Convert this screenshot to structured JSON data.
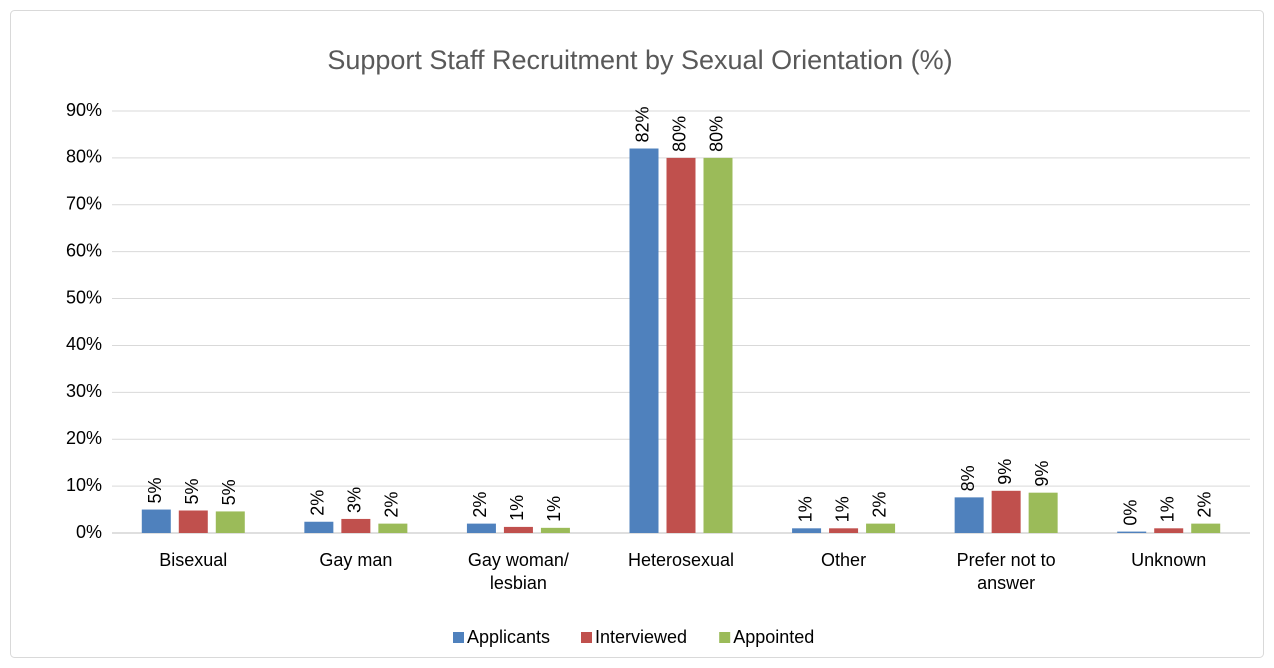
{
  "chart_data": {
    "type": "bar",
    "title": "Support Staff Recruitment by Sexual Orientation (%)",
    "categories": [
      "Bisexual",
      "Gay man",
      "Gay woman/ lesbian",
      "Heterosexual",
      "Other",
      "Prefer not to answer",
      "Unknown"
    ],
    "series": [
      {
        "name": "Applicants",
        "color": "#4f81bd",
        "values": [
          5,
          2.4,
          2,
          82,
          1,
          7.6,
          0.3
        ],
        "value_labels": [
          "5%",
          "2%",
          "2%",
          "82%",
          "1%",
          "8%",
          "0%"
        ]
      },
      {
        "name": "Interviewed",
        "color": "#c0504d",
        "values": [
          4.8,
          3,
          1.3,
          80,
          1,
          9,
          1
        ],
        "value_labels": [
          "5%",
          "3%",
          "1%",
          "80%",
          "1%",
          "9%",
          "1%"
        ]
      },
      {
        "name": "Appointed",
        "color": "#9bbb59",
        "values": [
          4.6,
          2,
          1.1,
          80,
          2,
          8.6,
          2
        ],
        "value_labels": [
          "5%",
          "2%",
          "1%",
          "80%",
          "2%",
          "9%",
          "2%"
        ]
      }
    ],
    "ylim": [
      0,
      90
    ],
    "yticks": [
      {
        "value": 0,
        "label": "0%"
      },
      {
        "value": 10,
        "label": "10%"
      },
      {
        "value": 20,
        "label": "20%"
      },
      {
        "value": 30,
        "label": "30%"
      },
      {
        "value": 40,
        "label": "40%"
      },
      {
        "value": 50,
        "label": "50%"
      },
      {
        "value": 60,
        "label": "60%"
      },
      {
        "value": 70,
        "label": "70%"
      },
      {
        "value": 80,
        "label": "80%"
      },
      {
        "value": 90,
        "label": "90%"
      }
    ],
    "grid": true,
    "legend": "bottom"
  }
}
